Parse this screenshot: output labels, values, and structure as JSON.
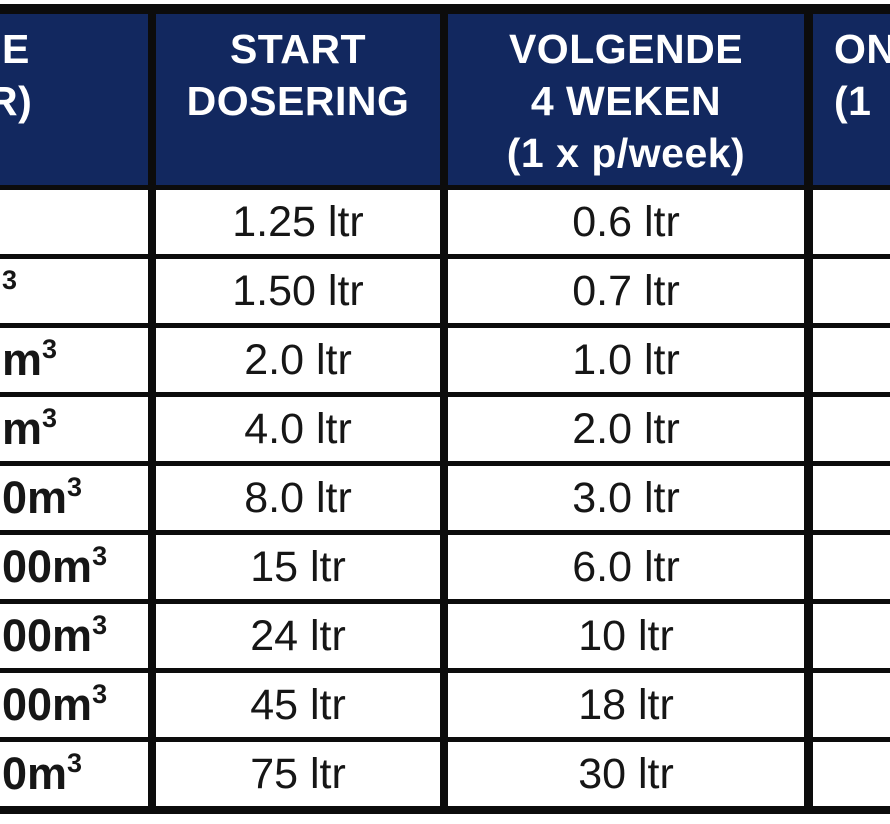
{
  "table": {
    "header": {
      "size": {
        "line1": "E",
        "line2": "R)"
      },
      "start": {
        "line1": "START",
        "line2": "DOSERING"
      },
      "weekly": {
        "line1": "VOLGENDE",
        "line2": "4 WEKEN",
        "line3": "(1 x p/week)"
      },
      "maintenance": {
        "line1": "ON",
        "line2": "(1"
      }
    },
    "rows": [
      {
        "size_fragment": "",
        "size_sup": "",
        "start": "1.25 ltr",
        "weekly": "0.6 ltr",
        "maintenance": ""
      },
      {
        "size_fragment": "",
        "size_sup": "3",
        "start": "1.50 ltr",
        "weekly": "0.7 ltr",
        "maintenance": ""
      },
      {
        "size_fragment": "m",
        "size_sup": "3",
        "start": "2.0 ltr",
        "weekly": "1.0 ltr",
        "maintenance": ""
      },
      {
        "size_fragment": "m",
        "size_sup": "3",
        "start": "4.0 ltr",
        "weekly": "2.0 ltr",
        "maintenance": ""
      },
      {
        "size_fragment": "0m",
        "size_sup": "3",
        "start": "8.0 ltr",
        "weekly": "3.0 ltr",
        "maintenance": ""
      },
      {
        "size_fragment": "00m",
        "size_sup": "3",
        "start": "15 ltr",
        "weekly": "6.0 ltr",
        "maintenance": ""
      },
      {
        "size_fragment": "00m",
        "size_sup": "3",
        "start": "24 ltr",
        "weekly": "10 ltr",
        "maintenance": ""
      },
      {
        "size_fragment": "00m",
        "size_sup": "3",
        "start": "45 ltr",
        "weekly": "18 ltr",
        "maintenance": ""
      },
      {
        "size_fragment": "0m",
        "size_sup": "3",
        "start": "75 ltr",
        "weekly": "30 ltr",
        "maintenance": ""
      }
    ],
    "colors": {
      "header_bg": "#12285f",
      "header_text": "#ffffff",
      "border": "#0c0c0c",
      "cell_bg": "#ffffff",
      "cell_text": "#161616"
    }
  }
}
